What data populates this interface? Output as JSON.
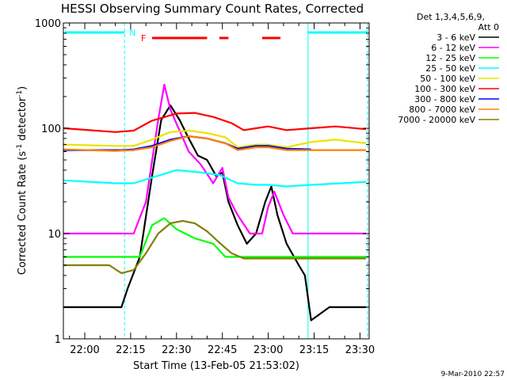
{
  "chart_data": {
    "type": "line",
    "title": "HESSI Observing Summary Count Rates, Corrected",
    "xlabel": "Start Time (13-Feb-05 21:53:02)",
    "ylabel_main": "Corrected Count Rate (s",
    "ylabel_sup1": "-1",
    "ylabel_mid": " detector",
    "ylabel_sup2": "-1",
    "ylabel_end": ")",
    "yscale": "log",
    "ylim": [
      1,
      1000
    ],
    "xlim": [
      "21:53",
      "23:33"
    ],
    "x_tick_labels": [
      "22:00",
      "22:15",
      "22:30",
      "22:45",
      "23:00",
      "23:15",
      "23:30"
    ],
    "y_tick_labels": [
      "1",
      "10",
      "100",
      "1000"
    ],
    "legend_header": [
      "Det 1,3,4,5,6,9,",
      "Att 0"
    ],
    "legend_position": "right",
    "night_label": "N",
    "flare_label": "F",
    "flare_intervals": [
      [
        "22:22",
        "22:40"
      ],
      [
        "22:44",
        "22:47"
      ],
      [
        "22:58",
        "23:04"
      ]
    ],
    "night_intervals": [
      [
        "21:53",
        "22:13"
      ],
      [
        "23:13",
        "23:33"
      ]
    ],
    "series": [
      {
        "name": "3 - 6 keV",
        "color": "#000000",
        "x": [
          "21:53",
          "22:12",
          "22:14",
          "22:18",
          "22:22",
          "22:25",
          "22:28",
          "22:31",
          "22:34",
          "22:37",
          "22:40",
          "22:43",
          "22:45",
          "22:47",
          "22:50",
          "22:53",
          "22:56",
          "22:59",
          "23:01",
          "23:03",
          "23:06",
          "23:10",
          "23:12",
          "23:14",
          "23:20",
          "23:25",
          "23:32"
        ],
        "y": [
          2,
          2,
          3,
          6,
          35,
          120,
          165,
          120,
          80,
          55,
          50,
          35,
          38,
          20,
          12,
          8,
          10,
          20,
          28,
          15,
          8,
          5,
          4,
          1.5,
          2,
          2,
          2
        ]
      },
      {
        "name": "6 - 12 keV",
        "color": "#ff00ff",
        "x": [
          "21:53",
          "22:12",
          "22:16",
          "22:20",
          "22:24",
          "22:26",
          "22:28",
          "22:31",
          "22:34",
          "22:38",
          "22:42",
          "22:45",
          "22:47",
          "22:50",
          "22:54",
          "22:58",
          "23:00",
          "23:02",
          "23:05",
          "23:08",
          "23:14",
          "23:32"
        ],
        "y": [
          10,
          10,
          10,
          20,
          120,
          260,
          150,
          95,
          60,
          45,
          30,
          42,
          22,
          15,
          10,
          10,
          18,
          25,
          15,
          10,
          10,
          10
        ]
      },
      {
        "name": "12 - 25 keV",
        "color": "#00ff00",
        "x": [
          "21:53",
          "22:14",
          "22:18",
          "22:22",
          "22:26",
          "22:30",
          "22:36",
          "22:42",
          "22:46",
          "22:50",
          "22:54",
          "23:00",
          "23:10",
          "23:20",
          "23:32"
        ],
        "y": [
          6,
          6,
          6,
          12,
          14,
          11,
          9,
          8,
          6,
          6,
          6,
          6,
          6,
          6,
          6
        ]
      },
      {
        "name": "25 - 50 keV",
        "color": "#00ffff",
        "x": [
          "21:53",
          "22:10",
          "22:16",
          "22:22",
          "22:30",
          "22:38",
          "22:44",
          "22:50",
          "22:56",
          "23:00",
          "23:06",
          "23:14",
          "23:24",
          "23:32"
        ],
        "y": [
          32,
          30,
          30,
          34,
          40,
          38,
          36,
          30,
          29,
          29,
          28,
          29,
          30,
          31
        ]
      },
      {
        "name": "50 - 100 keV",
        "color": "#e6e600",
        "x": [
          "21:53",
          "22:10",
          "22:16",
          "22:22",
          "22:28",
          "22:34",
          "22:40",
          "22:46",
          "22:50",
          "22:56",
          "23:00",
          "23:06",
          "23:14",
          "23:22",
          "23:32"
        ],
        "y": [
          70,
          68,
          68,
          78,
          92,
          95,
          90,
          82,
          66,
          70,
          70,
          66,
          74,
          78,
          72
        ]
      },
      {
        "name": "100 - 300 keV",
        "color": "#ff0000",
        "x": [
          "21:53",
          "22:10",
          "22:16",
          "22:22",
          "22:30",
          "22:36",
          "22:42",
          "22:48",
          "22:52",
          "22:56",
          "23:00",
          "23:06",
          "23:14",
          "23:22",
          "23:32"
        ],
        "y": [
          100,
          92,
          95,
          118,
          138,
          140,
          128,
          112,
          96,
          100,
          104,
          96,
          100,
          104,
          98
        ]
      },
      {
        "name": "300 - 800 keV",
        "color": "#0000ff",
        "x": [
          "21:53",
          "22:12",
          "22:16",
          "22:22",
          "22:28",
          "22:34",
          "22:40",
          "22:46",
          "22:50",
          "22:56",
          "23:00",
          "23:06",
          "23:14"
        ],
        "y": [
          62,
          62,
          63,
          68,
          78,
          84,
          80,
          72,
          64,
          68,
          68,
          64,
          63
        ]
      },
      {
        "name": "800 - 7000 keV",
        "color": "#ff8000",
        "x": [
          "21:53",
          "22:10",
          "22:16",
          "22:22",
          "22:28",
          "22:34",
          "22:40",
          "22:46",
          "22:50",
          "22:56",
          "23:00",
          "23:06",
          "23:14",
          "23:22",
          "23:32"
        ],
        "y": [
          63,
          61,
          62,
          66,
          76,
          84,
          80,
          72,
          62,
          66,
          66,
          62,
          62,
          62,
          62
        ]
      },
      {
        "name": "7000 - 20000 keV",
        "color": "#808000",
        "x": [
          "21:53",
          "22:08",
          "22:12",
          "22:16",
          "22:20",
          "22:24",
          "22:28",
          "22:32",
          "22:36",
          "22:40",
          "22:44",
          "22:48",
          "22:52",
          "23:00",
          "23:10",
          "23:14",
          "23:20",
          "23:32"
        ],
        "y": [
          5,
          5,
          4.2,
          4.5,
          6.5,
          10,
          12.5,
          13.2,
          12.5,
          10.5,
          8.2,
          6.5,
          5.8,
          5.8,
          5.8,
          5.8,
          5.8,
          5.8
        ]
      }
    ]
  },
  "footer_timestamp": "9-Mar-2010 22:57",
  "colors": {
    "night_line": "#00ffff",
    "flare": "#ff0000",
    "frame": "#000000",
    "background": "#ffffff"
  }
}
